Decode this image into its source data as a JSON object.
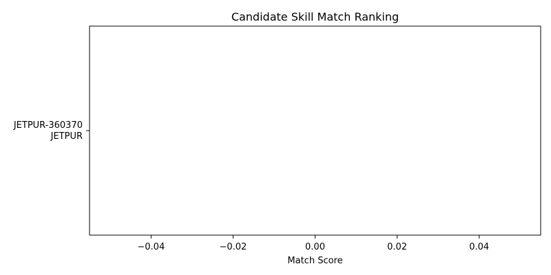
{
  "chart_data": {
    "type": "bar",
    "orientation": "horizontal",
    "title": "Candidate Skill Match Ranking",
    "xlabel": "Match Score",
    "ylabel": "",
    "categories": [
      "JETPUR-360370\nJETPUR"
    ],
    "values": [
      0
    ],
    "xlim": [
      -0.055,
      0.055
    ],
    "xticks": [
      -0.04,
      -0.02,
      0.0,
      0.02,
      0.04
    ],
    "xtick_labels": [
      "−0.04",
      "−0.02",
      "0.00",
      "0.02",
      "0.04"
    ],
    "grid": false,
    "legend": "none",
    "colors": {
      "frame": "#000000",
      "bar": "#1f77b4",
      "background": "#ffffff"
    }
  }
}
